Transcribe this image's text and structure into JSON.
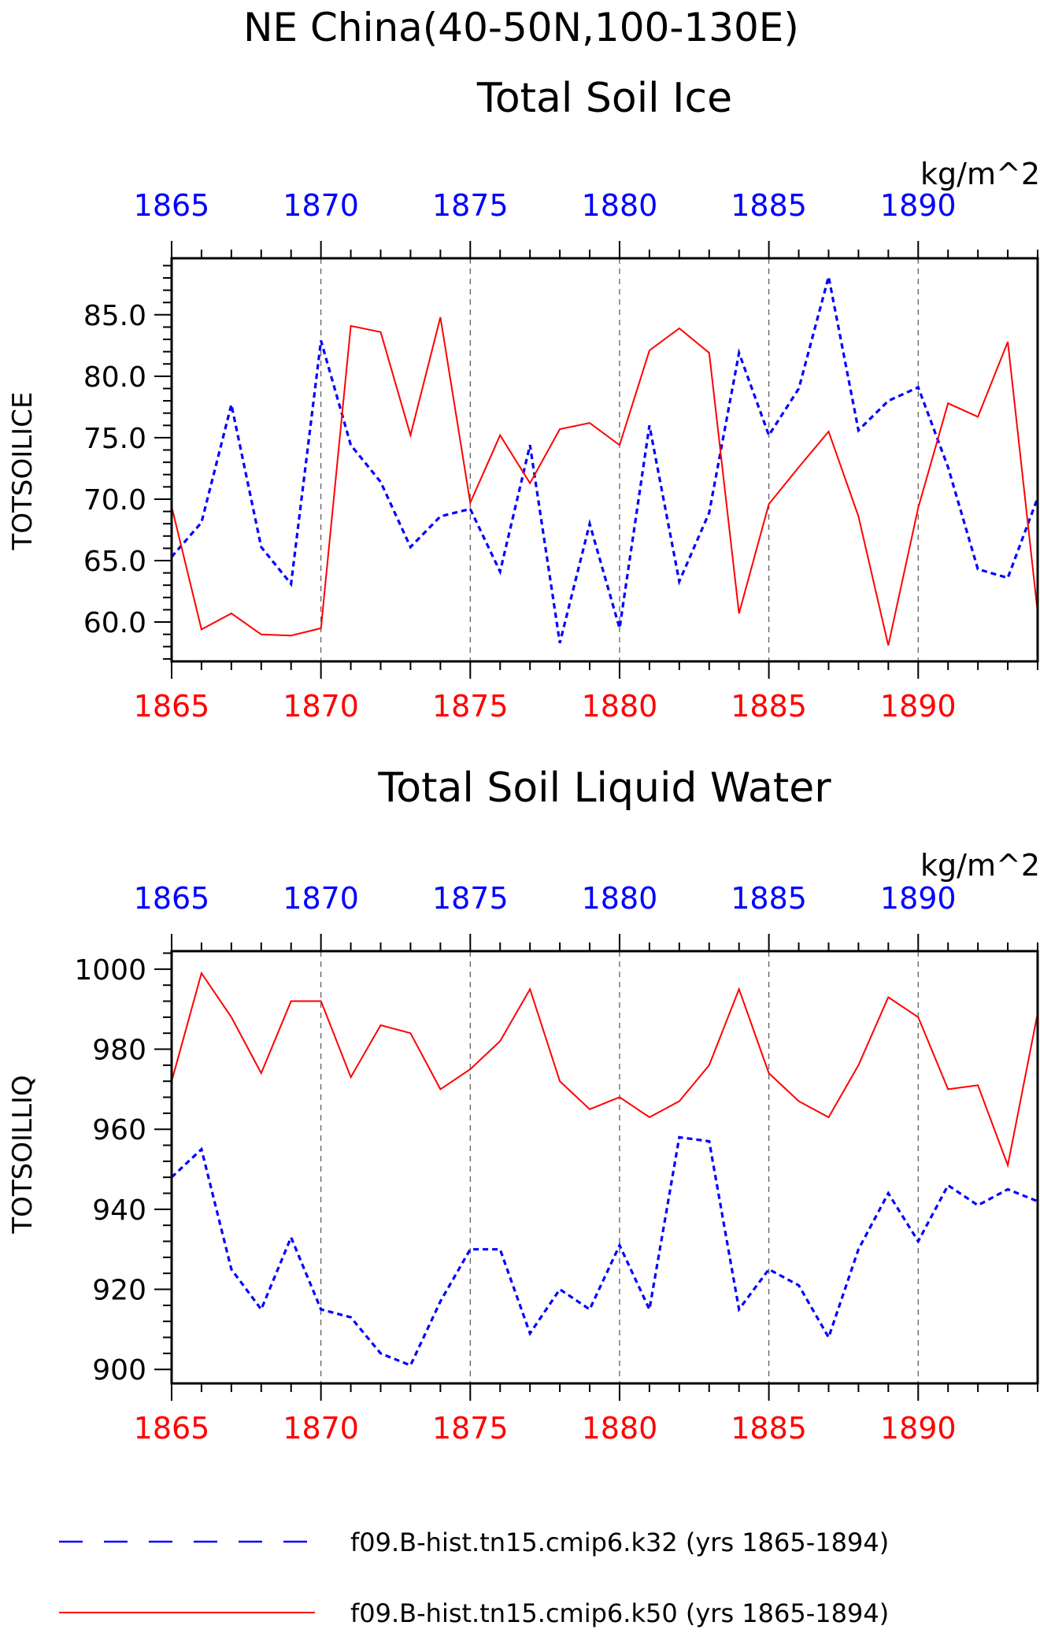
{
  "main_title": "NE China(40-50N,100-130E)",
  "legend": [
    {
      "label": "f09.B-hist.tn15.cmip6.k32 (yrs 1865-1894)",
      "color": "#0000ff",
      "style": "dashed"
    },
    {
      "label": "f09.B-hist.tn15.cmip6.k50 (yrs 1865-1894)",
      "color": "#ff0000",
      "style": "solid"
    }
  ],
  "colors": {
    "series_k32": "#0000ff",
    "series_k50": "#ff0000",
    "axis": "#000000",
    "grid": "#555555"
  },
  "chart_data": [
    {
      "type": "line",
      "title": "Total Soil Ice",
      "units": "kg/m^2",
      "ylabel": "TOTSOILICE",
      "xlim": [
        1865,
        1894
      ],
      "ylim": [
        56.8,
        89.6
      ],
      "xticks": [
        1865,
        1870,
        1875,
        1880,
        1885,
        1890
      ],
      "yticks": [
        60,
        65,
        70,
        75,
        80,
        85
      ],
      "ytick_labels": [
        "60.0",
        "65.0",
        "70.0",
        "75.0",
        "80.0",
        "85.0"
      ],
      "grid": "vertical dashed at 1870, 1875, 1880, 1885, 1890",
      "x": [
        1865,
        1866,
        1867,
        1868,
        1869,
        1870,
        1871,
        1872,
        1873,
        1874,
        1875,
        1876,
        1877,
        1878,
        1879,
        1880,
        1881,
        1882,
        1883,
        1884,
        1885,
        1886,
        1887,
        1888,
        1889,
        1890,
        1891,
        1892,
        1893,
        1894
      ],
      "series": [
        {
          "name": "f09.B-hist.tn15.cmip6.k32",
          "color": "#0000ff",
          "style": "dashed",
          "values": [
            65.3,
            68.1,
            77.7,
            66.1,
            63.1,
            82.9,
            74.4,
            71.4,
            66.1,
            68.6,
            69.2,
            64.1,
            74.4,
            58.3,
            68.0,
            59.5,
            76.0,
            63.3,
            68.9,
            81.9,
            75.2,
            79.0,
            88.1,
            75.6,
            78.0,
            79.1,
            72.6,
            64.3,
            63.6,
            70.1
          ]
        },
        {
          "name": "f09.B-hist.tn15.cmip6.k50",
          "color": "#ff0000",
          "style": "solid",
          "values": [
            69.4,
            59.4,
            60.7,
            59.0,
            58.9,
            59.5,
            84.1,
            83.6,
            75.2,
            84.8,
            69.7,
            75.2,
            71.3,
            75.7,
            76.2,
            74.4,
            82.1,
            83.9,
            81.9,
            60.7,
            69.6,
            72.6,
            75.5,
            68.6,
            58.1,
            69.3,
            77.8,
            76.7,
            82.8,
            60.8
          ]
        }
      ]
    },
    {
      "type": "line",
      "title": "Total Soil Liquid Water",
      "units": "kg/m^2",
      "ylabel": "TOTSOILLIQ",
      "xlim": [
        1865,
        1894
      ],
      "ylim": [
        896.5,
        1004.5
      ],
      "xticks": [
        1865,
        1870,
        1875,
        1880,
        1885,
        1890
      ],
      "yticks": [
        900,
        920,
        940,
        960,
        980,
        1000
      ],
      "ytick_labels": [
        "900",
        "920",
        "940",
        "960",
        "980",
        "1000"
      ],
      "grid": "vertical dashed at 1870, 1875, 1880, 1885, 1890",
      "x": [
        1865,
        1866,
        1867,
        1868,
        1869,
        1870,
        1871,
        1872,
        1873,
        1874,
        1875,
        1876,
        1877,
        1878,
        1879,
        1880,
        1881,
        1882,
        1883,
        1884,
        1885,
        1886,
        1887,
        1888,
        1889,
        1890,
        1891,
        1892,
        1893,
        1894
      ],
      "series": [
        {
          "name": "f09.B-hist.tn15.cmip6.k32",
          "color": "#0000ff",
          "style": "dashed",
          "values": [
            948,
            955,
            925,
            915,
            933,
            915,
            913,
            904,
            901,
            917,
            930,
            930,
            909,
            920,
            915,
            931,
            915,
            958,
            957,
            915,
            925,
            921,
            908,
            930,
            944,
            932,
            946,
            941,
            945,
            942
          ]
        },
        {
          "name": "f09.B-hist.tn15.cmip6.k50",
          "color": "#ff0000",
          "style": "solid",
          "values": [
            972,
            999,
            988,
            974,
            992,
            992,
            973,
            986,
            984,
            970,
            975,
            982,
            995,
            972,
            965,
            968,
            963,
            967,
            976,
            995,
            974,
            967,
            963,
            976,
            993,
            988,
            970,
            971,
            951,
            989
          ]
        }
      ]
    }
  ]
}
